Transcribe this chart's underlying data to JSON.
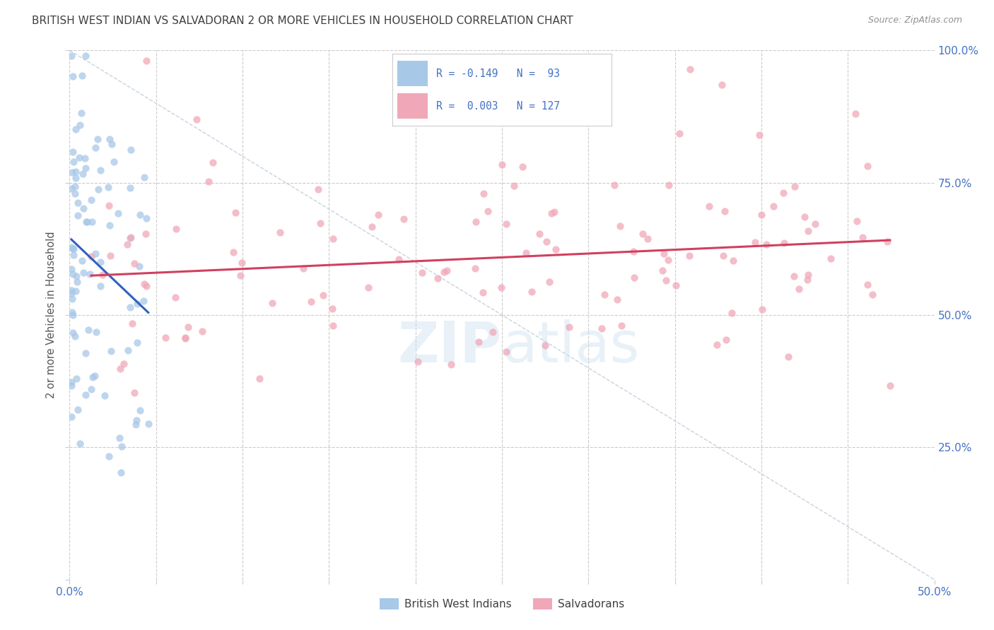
{
  "title": "BRITISH WEST INDIAN VS SALVADORAN 2 OR MORE VEHICLES IN HOUSEHOLD CORRELATION CHART",
  "source": "Source: ZipAtlas.com",
  "ylabel": "2 or more Vehicles in Household",
  "xlim": [
    0.0,
    0.5
  ],
  "ylim": [
    0.0,
    1.0
  ],
  "yticks": [
    0.0,
    0.25,
    0.5,
    0.75,
    1.0
  ],
  "xticks": [
    0.0,
    0.05,
    0.1,
    0.15,
    0.2,
    0.25,
    0.3,
    0.35,
    0.4,
    0.45,
    0.5
  ],
  "color_blue": "#a8c8e8",
  "color_pink": "#f0a8b8",
  "color_blue_line": "#3060c0",
  "color_pink_line": "#d04060",
  "color_axis_blue": "#4472c4",
  "color_title": "#404040",
  "color_source": "#909090",
  "color_diag": "#b8c8d8",
  "legend_label1": "R = -0.149   N =  93",
  "legend_label2": "R =  0.003   N = 127",
  "legend_label_blue": "British West Indians",
  "legend_label_pink": "Salvadorans",
  "watermark1": "ZIP",
  "watermark2": "atlas"
}
